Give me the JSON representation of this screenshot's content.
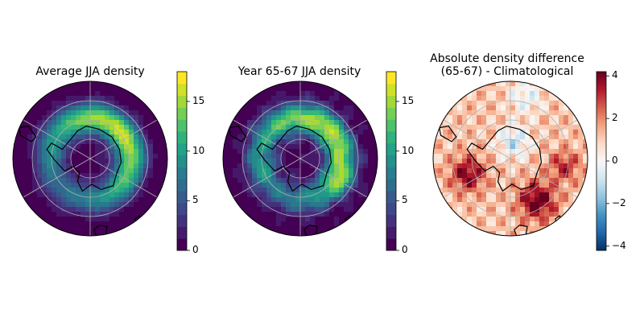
{
  "chart_data": [
    {
      "type": "heatmap",
      "projection": "south-polar-stereographic",
      "title": "Average JJA density",
      "colormap": "viridis",
      "colorbar": {
        "ticks": [
          "0",
          "5",
          "10",
          "15"
        ],
        "range": [
          0,
          18
        ]
      },
      "features": [
        "coastlines",
        "graticule"
      ],
      "pattern": "high-density ring around Antarctica (~10-17), maxima in Indian Ocean sector; low (0-3) over the continent"
    },
    {
      "type": "heatmap",
      "projection": "south-polar-stereographic",
      "title": "Year 65-67 JJA density",
      "colormap": "viridis",
      "colorbar": {
        "ticks": [
          "0",
          "5",
          "10",
          "15"
        ],
        "range": [
          0,
          18
        ]
      },
      "features": [
        "coastlines",
        "graticule"
      ],
      "pattern": "ring around Antarctica with maxima up to ~17 east of the Antarctic Peninsula and south of Australia"
    },
    {
      "type": "heatmap",
      "projection": "south-polar-stereographic",
      "title": "Absolute density difference\n(65-67) - Climatological",
      "colormap": "RdBu_r",
      "colorbar": {
        "ticks": [
          "−4",
          "−2",
          "0",
          "2",
          "4"
        ],
        "range": [
          -4.2,
          4.2
        ]
      },
      "features": [
        "coastlines",
        "graticule"
      ],
      "pattern": "mostly positive (red) differences, strongest (~3-4) in Atlantic/Indian sectors and south of Australia; weak negative (blue) near the pole"
    }
  ]
}
